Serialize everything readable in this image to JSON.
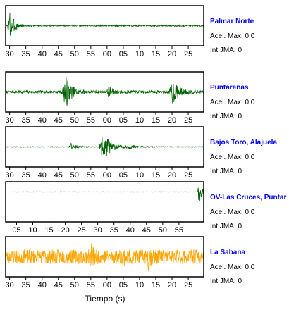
{
  "chart_data": {
    "type": "line",
    "xlabel": "Tiempo (s)",
    "grid": false,
    "legend": "none",
    "series": [
      {
        "name": "Palmar Norte",
        "accel_label": "Acel. Max. 0.0",
        "jma_label": "Int JMA: 0",
        "color": "#006400",
        "ticks": [
          "30",
          "35",
          "40",
          "45",
          "50",
          "55",
          "00",
          "05",
          "10",
          "15",
          "20",
          "25"
        ],
        "tick_pos": [
          0.02,
          0.102,
          0.184,
          0.266,
          0.348,
          0.43,
          0.512,
          0.594,
          0.676,
          0.758,
          0.84,
          0.922
        ],
        "events": [
          [
            0.02,
            0.9,
            0.02
          ]
        ],
        "noise": 0.04,
        "seed": 3
      },
      {
        "name": "Puntarenas",
        "accel_label": "Acel. Max. 0.0",
        "jma_label": "Int JMA: 0",
        "color": "#006400",
        "ticks": [
          "30",
          "35",
          "40",
          "45",
          "50",
          "55",
          "00",
          "05",
          "10",
          "15",
          "20",
          "25"
        ],
        "tick_pos": [
          0.02,
          0.102,
          0.184,
          0.266,
          0.348,
          0.43,
          0.512,
          0.594,
          0.676,
          0.758,
          0.84,
          0.922
        ],
        "events": [
          [
            0.3,
            1.0,
            0.025
          ],
          [
            0.52,
            0.3,
            0.02
          ],
          [
            0.84,
            0.75,
            0.025
          ]
        ],
        "noise": 0.08,
        "seed": 7
      },
      {
        "name": "Bajos Toro, Alajuela",
        "accel_label": "Acel. Max. 0.0",
        "jma_label": "Int JMA: 0",
        "color": "#006400",
        "ticks": [
          "30",
          "35",
          "40",
          "45",
          "50",
          "55",
          "00",
          "05",
          "10",
          "15",
          "20",
          "25"
        ],
        "tick_pos": [
          0.02,
          0.102,
          0.184,
          0.266,
          0.348,
          0.43,
          0.512,
          0.594,
          0.676,
          0.758,
          0.84,
          0.922
        ],
        "events": [
          [
            0.49,
            1.0,
            0.03
          ],
          [
            0.33,
            0.2,
            0.02
          ],
          [
            0.62,
            0.15,
            0.03
          ]
        ],
        "noise": 0.02,
        "seed": 11
      },
      {
        "name": "OV-Las Cruces, Puntar",
        "accel_label": "Acel. Max. 0.0",
        "jma_label": "Int JMA: 0",
        "color": "#006400",
        "ticks": [
          "05",
          "10",
          "15",
          "20",
          "25",
          "30",
          "35",
          "40",
          "45",
          "50",
          "55"
        ],
        "tick_pos": [
          0.055,
          0.137,
          0.219,
          0.301,
          0.383,
          0.465,
          0.547,
          0.629,
          0.711,
          0.793,
          0.875
        ],
        "events": [
          [
            0.975,
            1.0,
            0.01
          ]
        ],
        "noise": 0.01,
        "baseline": -0.55,
        "seed": 17
      },
      {
        "name": "La Sabana",
        "accel_label": "Acel. Max. 0.0",
        "jma_label": "Int JMA: 0",
        "color": "#ffa500",
        "ticks": [
          "30",
          "35",
          "40",
          "45",
          "50",
          "55",
          "00",
          "05",
          "10",
          "15",
          "20",
          "25"
        ],
        "tick_pos": [
          0.02,
          0.102,
          0.184,
          0.266,
          0.348,
          0.43,
          0.512,
          0.594,
          0.676,
          0.758,
          0.84,
          0.922
        ],
        "events": [
          [
            0.43,
            1.0,
            0.008
          ],
          [
            0.72,
            0.5,
            0.01
          ],
          [
            0.6,
            0.35,
            0.01
          ]
        ],
        "noise": 0.4,
        "seed": 23
      }
    ]
  }
}
